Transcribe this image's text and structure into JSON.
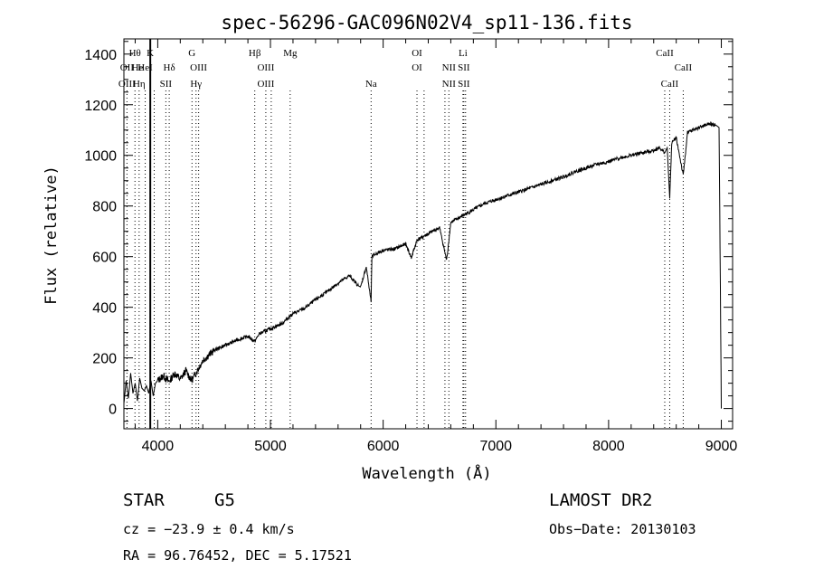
{
  "chart_data": {
    "type": "line",
    "title": "spec-56296-GAC096N02V4_sp11-136.fits",
    "xlabel": "Wavelength (Å)",
    "ylabel": "Flux (relative)",
    "xlim": [
      3700,
      9100
    ],
    "ylim": [
      -80,
      1460
    ],
    "xticks": [
      4000,
      5000,
      6000,
      7000,
      8000,
      9000
    ],
    "yticks": [
      0,
      200,
      400,
      600,
      800,
      1000,
      1200,
      1400
    ],
    "series": [
      {
        "x": [
          3700,
          3720,
          3740,
          3760,
          3780,
          3800,
          3820,
          3840,
          3860,
          3880,
          3900,
          3920,
          3940,
          3960,
          3980,
          4000,
          4050,
          4100,
          4150,
          4200,
          4250,
          4300,
          4350,
          4400,
          4450,
          4500,
          4600,
          4700,
          4800,
          4861,
          4900,
          5000,
          5100,
          5200,
          5300,
          5400,
          5500,
          5600,
          5700,
          5780,
          5800,
          5850,
          5893,
          5900,
          5950,
          6000,
          6100,
          6200,
          6250,
          6300,
          6400,
          6500,
          6563,
          6600,
          6700,
          6800,
          6900,
          7000,
          7100,
          7200,
          7300,
          7400,
          7500,
          7600,
          7700,
          7800,
          7900,
          8000,
          8100,
          8200,
          8300,
          8400,
          8450,
          8498,
          8520,
          8542,
          8560,
          8600,
          8662,
          8700,
          8800,
          8900,
          8950,
          8980,
          9000
        ],
        "y": [
          20,
          110,
          40,
          140,
          60,
          100,
          30,
          120,
          80,
          70,
          90,
          60,
          110,
          50,
          100,
          110,
          130,
          105,
          140,
          115,
          150,
          110,
          150,
          190,
          210,
          230,
          250,
          270,
          285,
          265,
          295,
          315,
          335,
          375,
          395,
          430,
          460,
          495,
          525,
          485,
          480,
          560,
          420,
          600,
          615,
          625,
          630,
          650,
          595,
          665,
          690,
          715,
          585,
          735,
          760,
          785,
          810,
          825,
          840,
          855,
          870,
          885,
          900,
          915,
          935,
          950,
          965,
          975,
          990,
          1000,
          1010,
          1020,
          1030,
          1010,
          1030,
          830,
          1050,
          1070,
          920,
          1090,
          1110,
          1125,
          1120,
          1110,
          0
        ]
      }
    ],
    "line_labels": [
      {
        "label": "Hθ",
        "x": 3798,
        "row": 1
      },
      {
        "label": "K",
        "x": 3934,
        "row": 1
      },
      {
        "label": "OII",
        "x": 3727,
        "row": 2
      },
      {
        "label": "He",
        "x": 3820,
        "row": 2
      },
      {
        "label": "HeI",
        "x": 3889,
        "row": 2
      },
      {
        "label": "OIII",
        "x": 3727,
        "row": 3
      },
      {
        "label": "Hη",
        "x": 3835,
        "row": 3
      },
      {
        "label": "Hδ",
        "x": 4102,
        "row": 2
      },
      {
        "label": "SII",
        "x": 4072,
        "row": 3
      },
      {
        "label": "G",
        "x": 4304,
        "row": 1
      },
      {
        "label": "OIII",
        "x": 4363,
        "row": 2
      },
      {
        "label": "Hγ",
        "x": 4340,
        "row": 3
      },
      {
        "label": "Hβ",
        "x": 4861,
        "row": 1
      },
      {
        "label": "OIII",
        "x": 4959,
        "row": 2
      },
      {
        "label": "OIII",
        "x": 4959,
        "row": 3
      },
      {
        "label": "Mg",
        "x": 5175,
        "row": 1
      },
      {
        "label": "Na",
        "x": 5893,
        "row": 3
      },
      {
        "label": "OI",
        "x": 6300,
        "row": 1
      },
      {
        "label": "OI",
        "x": 6300,
        "row": 2
      },
      {
        "label": "Li",
        "x": 6708,
        "row": 1
      },
      {
        "label": "NII",
        "x": 6583,
        "row": 2
      },
      {
        "label": "SII",
        "x": 6716,
        "row": 2
      },
      {
        "label": "NII",
        "x": 6583,
        "row": 3
      },
      {
        "label": "SII",
        "x": 6716,
        "row": 3
      },
      {
        "label": "CaII",
        "x": 8498,
        "row": 1
      },
      {
        "label": "CaII",
        "x": 8662,
        "row": 2
      },
      {
        "label": "CaII",
        "x": 8542,
        "row": 3
      }
    ],
    "line_markers": [
      3727,
      3798,
      3835,
      3889,
      3934,
      3969,
      4072,
      4102,
      4304,
      4340,
      4363,
      4861,
      4959,
      5007,
      5175,
      5893,
      6300,
      6363,
      6548,
      6583,
      6708,
      6716,
      6731,
      8498,
      8542,
      8662
    ],
    "strong_marker": 3934
  },
  "info": {
    "object_type": "STAR",
    "subclass": "G5",
    "survey": "LAMOST DR2",
    "redshift": "cz = −23.9 ± 0.4 km/s",
    "obs_date": "Obs−Date: 20130103",
    "coords": "RA =  96.76452, DEC =   5.17521"
  }
}
